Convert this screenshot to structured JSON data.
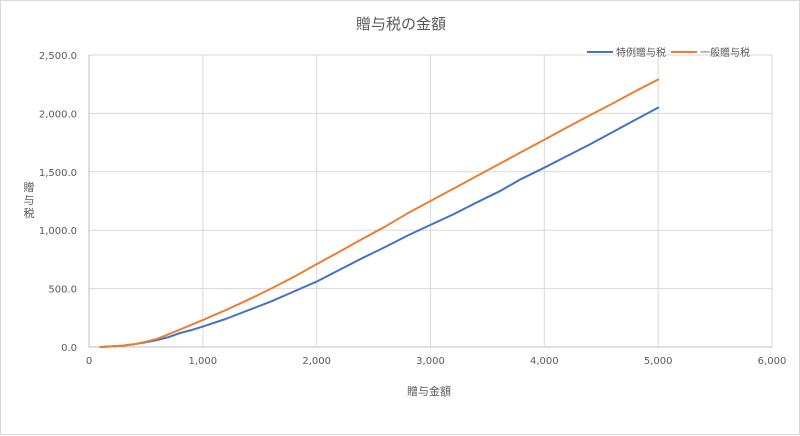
{
  "chart_data": {
    "type": "line",
    "title": "贈与税の金額",
    "xlabel": "贈与金額",
    "ylabel": "贈与税",
    "xlim": [
      0,
      6000
    ],
    "ylim": [
      0,
      2500
    ],
    "x_ticks": [
      0,
      1000,
      2000,
      3000,
      4000,
      5000,
      6000
    ],
    "x_tick_labels": [
      "0",
      "1,000",
      "2,000",
      "3,000",
      "4,000",
      "5,000",
      "6,000"
    ],
    "y_ticks": [
      0,
      500,
      1000,
      1500,
      2000,
      2500
    ],
    "y_tick_labels": [
      "0.0",
      "500.0",
      "1,000.0",
      "1,500.0",
      "2,000.0",
      "2,500.0"
    ],
    "grid": true,
    "legend_position": "top-right",
    "series": [
      {
        "name": "特例贈与税",
        "color": "#4472c4",
        "x": [
          100,
          200,
          300,
          400,
          500,
          600,
          700,
          800,
          900,
          1000,
          1200,
          1400,
          1600,
          1800,
          2000,
          2200,
          2400,
          2600,
          2800,
          3000,
          3200,
          3400,
          3600,
          3800,
          4000,
          4200,
          4400,
          4600,
          4800,
          5000
        ],
        "values": [
          0,
          5,
          12,
          24,
          40,
          60,
          85,
          120,
          145,
          175,
          240,
          315,
          390,
          475,
          560,
          660,
          760,
          855,
          955,
          1045,
          1135,
          1235,
          1330,
          1440,
          1535,
          1635,
          1735,
          1840,
          1945,
          2050
        ]
      },
      {
        "name": "一般贈与税",
        "color": "#ed7d31",
        "x": [
          100,
          200,
          300,
          400,
          500,
          600,
          700,
          800,
          900,
          1000,
          1200,
          1400,
          1600,
          1800,
          2000,
          2200,
          2400,
          2600,
          2800,
          3000,
          3200,
          3400,
          3600,
          3800,
          4000,
          4200,
          4400,
          4600,
          4800,
          5000
        ],
        "values": [
          0,
          5,
          12,
          25,
          45,
          70,
          110,
          150,
          190,
          230,
          315,
          405,
          500,
          600,
          710,
          815,
          925,
          1030,
          1145,
          1250,
          1355,
          1460,
          1565,
          1670,
          1775,
          1880,
          1985,
          2085,
          2190,
          2290
        ]
      }
    ]
  }
}
